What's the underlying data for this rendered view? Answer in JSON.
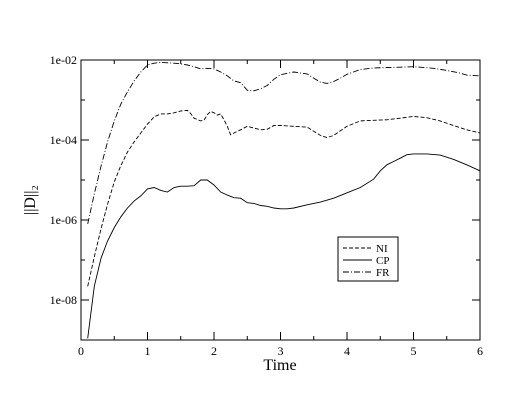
{
  "chart_data": {
    "type": "line",
    "title": "",
    "xlabel": "Time",
    "ylabel": "||D||₂",
    "xlim": [
      0,
      6
    ],
    "ylim": [
      1e-09,
      0.01
    ],
    "yscale": "log",
    "grid": false,
    "legend_position": "lower-right",
    "x_ticks": [
      0,
      1,
      2,
      3,
      4,
      5,
      6
    ],
    "x_tick_labels": [
      "0",
      "1",
      "2",
      "3",
      "4",
      "5",
      "6"
    ],
    "y_ticks": [
      1e-08,
      1e-06,
      0.0001,
      0.01
    ],
    "y_tick_labels": [
      "1e-08",
      "1e-06",
      "1e-04",
      "1e-02"
    ],
    "series": [
      {
        "name": "NI",
        "dash": "dashed",
        "x": [
          0.1,
          0.2,
          0.3,
          0.4,
          0.5,
          0.6,
          0.7,
          0.8,
          0.9,
          1.0,
          1.1,
          1.2,
          1.3,
          1.4,
          1.5,
          1.6,
          1.65,
          1.7,
          1.8,
          1.85,
          1.9,
          1.95,
          2.0,
          2.05,
          2.1,
          2.15,
          2.2,
          2.25,
          2.3,
          2.4,
          2.5,
          2.6,
          2.7,
          2.8,
          2.9,
          3.0,
          3.2,
          3.4,
          3.6,
          3.7,
          3.8,
          3.9,
          4.0,
          4.2,
          4.4,
          4.6,
          4.8,
          5.0,
          5.2,
          5.4,
          5.6,
          5.8,
          6.0
        ],
        "values": [
          2.2e-08,
          1.2e-07,
          6e-07,
          2.5e-06,
          9e-06,
          2.3e-05,
          5e-05,
          9e-05,
          0.00015,
          0.00025,
          0.00038,
          0.00045,
          0.00045,
          0.00048,
          0.00053,
          0.00055,
          0.00046,
          0.00035,
          0.0003,
          0.00031,
          0.00043,
          0.00052,
          0.00048,
          0.00042,
          0.00045,
          0.00032,
          0.00022,
          0.000135,
          0.00015,
          0.00018,
          0.00022,
          0.0002,
          0.00018,
          0.000185,
          0.00023,
          0.00023,
          0.00022,
          0.00021,
          0.00013,
          0.000115,
          0.00013,
          0.00017,
          0.00022,
          0.0003,
          0.00031,
          0.00032,
          0.00035,
          0.00039,
          0.00036,
          0.0003,
          0.00023,
          0.00018,
          0.00015
        ]
      },
      {
        "name": "CP",
        "dash": "solid",
        "x": [
          0.1,
          0.2,
          0.3,
          0.4,
          0.5,
          0.6,
          0.7,
          0.8,
          0.9,
          1.0,
          1.1,
          1.2,
          1.3,
          1.4,
          1.5,
          1.6,
          1.7,
          1.8,
          1.9,
          2.0,
          2.1,
          2.2,
          2.3,
          2.4,
          2.5,
          2.6,
          2.7,
          2.8,
          2.9,
          3.0,
          3.1,
          3.2,
          3.4,
          3.6,
          3.8,
          4.0,
          4.2,
          4.4,
          4.5,
          4.6,
          4.7,
          4.8,
          4.9,
          5.0,
          5.2,
          5.4,
          5.6,
          5.8,
          6.0
        ],
        "values": [
          1.1e-09,
          2.2e-08,
          1.1e-07,
          3e-07,
          6.5e-07,
          1.2e-06,
          2e-06,
          3e-06,
          4e-06,
          6e-06,
          6.5e-06,
          5.5e-06,
          5e-06,
          6.5e-06,
          7e-06,
          7e-06,
          7.2e-06,
          1e-05,
          1e-05,
          7.5e-06,
          5e-06,
          4.2e-06,
          3.6e-06,
          3.5e-06,
          2.7e-06,
          2.6e-06,
          2.3e-06,
          2.2e-06,
          2e-06,
          1.9e-06,
          1.9e-06,
          2e-06,
          2.4e-06,
          2.8e-06,
          3.5e-06,
          4.8e-06,
          6.5e-06,
          1.05e-05,
          1.7e-05,
          2.4e-05,
          2.9e-05,
          3.5e-05,
          4.3e-05,
          4.5e-05,
          4.5e-05,
          4.2e-05,
          3.3e-05,
          2.4e-05,
          1.7e-05
        ]
      },
      {
        "name": "FR",
        "dash": "dashdot",
        "x": [
          0.1,
          0.2,
          0.3,
          0.4,
          0.5,
          0.6,
          0.7,
          0.8,
          0.9,
          1.0,
          1.1,
          1.2,
          1.3,
          1.4,
          1.5,
          1.6,
          1.7,
          1.8,
          1.9,
          2.0,
          2.1,
          2.2,
          2.3,
          2.4,
          2.5,
          2.6,
          2.7,
          2.8,
          2.9,
          3.0,
          3.2,
          3.4,
          3.5,
          3.6,
          3.7,
          3.8,
          3.9,
          4.0,
          4.2,
          4.4,
          4.6,
          4.8,
          5.0,
          5.1,
          5.3,
          5.5,
          5.7,
          5.8,
          6.0
        ],
        "values": [
          8e-07,
          4.5e-06,
          2.2e-05,
          9e-05,
          0.0003,
          0.0008,
          0.0016,
          0.003,
          0.005,
          0.0075,
          0.0083,
          0.0087,
          0.0085,
          0.0083,
          0.008,
          0.0075,
          0.0068,
          0.006,
          0.0062,
          0.006,
          0.005,
          0.004,
          0.003,
          0.0027,
          0.00175,
          0.0017,
          0.0019,
          0.0023,
          0.0033,
          0.0043,
          0.005,
          0.0045,
          0.0035,
          0.0028,
          0.0026,
          0.0029,
          0.0035,
          0.0044,
          0.0058,
          0.0063,
          0.0065,
          0.0066,
          0.0068,
          0.0066,
          0.0062,
          0.0055,
          0.0047,
          0.0042,
          0.004
        ]
      }
    ]
  }
}
